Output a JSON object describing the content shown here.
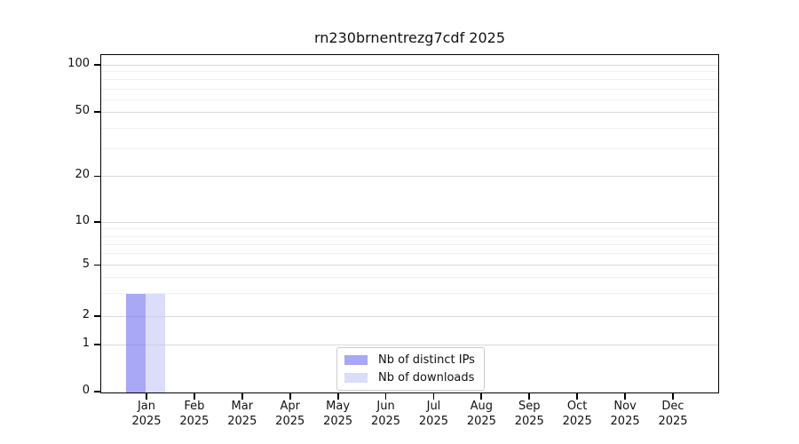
{
  "chart_data": {
    "type": "bar",
    "title": "rn230brnentrezg7cdf 2025",
    "categories": [
      "Jan",
      "Feb",
      "Mar",
      "Apr",
      "May",
      "Jun",
      "Jul",
      "Aug",
      "Sep",
      "Oct",
      "Nov",
      "Dec"
    ],
    "category_year": "2025",
    "series": [
      {
        "name": "Nb of distinct IPs",
        "legend_color": "#a8a8f4",
        "fill_rgba": "rgba(114,114,240,0.62)",
        "values": [
          3,
          0,
          0,
          0,
          0,
          0,
          0,
          0,
          0,
          0,
          0,
          0
        ]
      },
      {
        "name": "Nb of downloads",
        "legend_color": "#dbdbfa",
        "fill_rgba": "rgba(198,198,248,0.62)",
        "values": [
          3,
          0,
          0,
          0,
          0,
          0,
          0,
          0,
          0,
          0,
          0,
          0
        ]
      }
    ],
    "yscale": "symlog",
    "ylim": [
      0,
      115
    ],
    "ytick_values": [
      0,
      1,
      2,
      5,
      10,
      20,
      50,
      100
    ],
    "ytick_labels": [
      "0",
      "1",
      "2",
      "5",
      "10",
      "20",
      "50",
      "100"
    ],
    "minor_ytick_values": [
      3,
      4,
      6,
      7,
      8,
      9,
      30,
      40,
      60,
      70,
      80,
      90
    ],
    "grid": {
      "major_color": "#d9d9d9",
      "minor_color": "#f0f0f0",
      "axis_color": "#000000"
    },
    "legend_position": "lower center",
    "xlabel": "",
    "ylabel": ""
  }
}
